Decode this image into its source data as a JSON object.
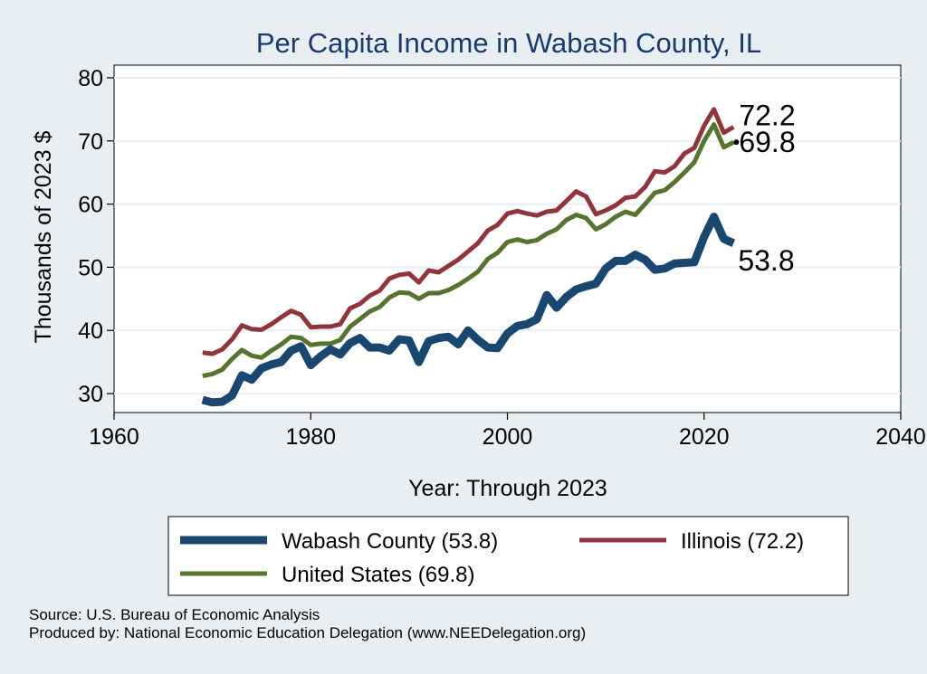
{
  "chart_data": {
    "type": "line",
    "title": "Per Capita Income in Wabash County, IL",
    "xlabel": "Year: Through 2023",
    "ylabel": "Thousands of 2023 $",
    "xlim": [
      1960,
      2040
    ],
    "ylim": [
      27,
      82
    ],
    "xticks": [
      1960,
      1980,
      2000,
      2020,
      2040
    ],
    "yticks": [
      30,
      40,
      50,
      60,
      70,
      80
    ],
    "x": [
      1969,
      1970,
      1971,
      1972,
      1973,
      1974,
      1975,
      1976,
      1977,
      1978,
      1979,
      1980,
      1981,
      1982,
      1983,
      1984,
      1985,
      1986,
      1987,
      1988,
      1989,
      1990,
      1991,
      1992,
      1993,
      1994,
      1995,
      1996,
      1997,
      1998,
      1999,
      2000,
      2001,
      2002,
      2003,
      2004,
      2005,
      2006,
      2007,
      2008,
      2009,
      2010,
      2011,
      2012,
      2013,
      2014,
      2015,
      2016,
      2017,
      2018,
      2019,
      2020,
      2021,
      2022,
      2023
    ],
    "series": [
      {
        "name": "Wabash County",
        "legend": "Wabash County (53.8)",
        "color": "#1a476f",
        "end_label": "53.8",
        "values": [
          29.0,
          28.6,
          28.7,
          29.7,
          32.9,
          32.2,
          34.0,
          34.6,
          35.0,
          36.8,
          37.5,
          34.5,
          35.9,
          37.0,
          36.2,
          38.0,
          38.8,
          37.3,
          37.3,
          36.8,
          38.6,
          38.4,
          35.0,
          38.3,
          38.8,
          39.0,
          37.8,
          40.0,
          38.5,
          37.3,
          37.2,
          39.5,
          40.7,
          41.0,
          41.8,
          45.6,
          43.6,
          45.3,
          46.5,
          47.0,
          47.4,
          49.8,
          51.0,
          51.0,
          52.0,
          51.2,
          49.6,
          49.8,
          50.6,
          50.7,
          50.8,
          54.8,
          58.0,
          54.5,
          53.8
        ]
      },
      {
        "name": "Illinois",
        "legend": "Illinois (72.2)",
        "color": "#90353b",
        "end_label": "72.2",
        "values": [
          36.5,
          36.3,
          37.0,
          38.6,
          40.8,
          40.2,
          40.1,
          41.0,
          42.1,
          43.1,
          42.5,
          40.5,
          40.6,
          40.6,
          41.0,
          43.5,
          44.2,
          45.5,
          46.3,
          48.2,
          48.8,
          49.0,
          47.6,
          49.5,
          49.2,
          50.2,
          51.2,
          52.5,
          53.8,
          55.8,
          56.7,
          58.5,
          58.9,
          58.5,
          58.2,
          58.8,
          59.0,
          60.5,
          62.0,
          61.2,
          58.4,
          59.0,
          59.8,
          61.0,
          61.2,
          62.7,
          65.2,
          65.0,
          66.0,
          68.0,
          68.9,
          72.4,
          75.0,
          71.3,
          72.2
        ]
      },
      {
        "name": "United States",
        "legend": "United States (69.8)",
        "color": "#55752f",
        "end_label": "69.8",
        "values": [
          32.8,
          33.1,
          33.8,
          35.5,
          36.9,
          36.0,
          35.7,
          36.8,
          37.8,
          39.0,
          38.8,
          37.7,
          37.9,
          37.9,
          38.5,
          40.6,
          41.8,
          43.0,
          43.7,
          45.2,
          46.0,
          45.9,
          45.0,
          45.9,
          45.9,
          46.4,
          47.2,
          48.2,
          49.3,
          51.3,
          52.3,
          54.0,
          54.4,
          54.0,
          54.3,
          55.3,
          56.0,
          57.5,
          58.3,
          57.8,
          56.0,
          56.8,
          58.0,
          58.8,
          58.3,
          60.0,
          61.8,
          62.2,
          63.5,
          65.0,
          66.6,
          70.0,
          72.6,
          69.0,
          69.8
        ]
      }
    ]
  },
  "footer": {
    "source": "Source: U.S. Bureau of Economic Analysis",
    "produced_by": "Produced by: National Economic Education Delegation (www.NEEDelegation.org)"
  }
}
